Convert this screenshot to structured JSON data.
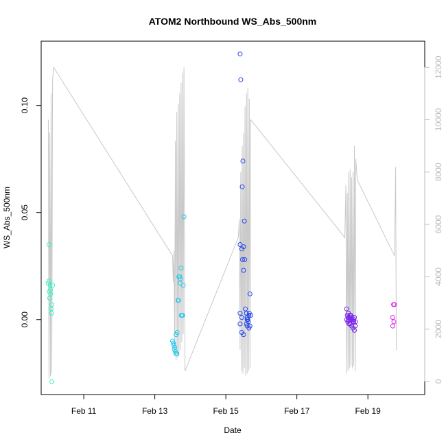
{
  "chart_data": {
    "type": "scatter",
    "title": "ATOM2 Northbound WS_Abs_500nm",
    "xlabel": "Date",
    "ylabel": "WS_Abs_500nm",
    "x_ticks": [
      "Feb 11",
      "Feb 13",
      "Feb 15",
      "Feb 17",
      "Feb 19"
    ],
    "x_tick_days": [
      11,
      13,
      15,
      17,
      19
    ],
    "xlim": [
      9.8,
      20.6
    ],
    "ylim": [
      -0.035,
      0.13
    ],
    "y_ticks": [
      0.0,
      0.05,
      0.1
    ],
    "y_tick_labels": [
      "0.00",
      "0.05",
      "0.10"
    ],
    "y2_lim": [
      -500,
      13000
    ],
    "y2_ticks": [
      0,
      2000,
      4000,
      6000,
      8000,
      10000,
      12000
    ],
    "y2_tick_labels": [
      "0",
      "2000",
      "4000",
      "6000",
      "8000",
      "10000",
      "12000"
    ],
    "grid": false,
    "legend": "none",
    "colors": {
      "line": "#c8c8c8",
      "group1": "#33f2c0",
      "group2": "#22c8ee",
      "group3": "#2244ee",
      "group4": "#7a22ee",
      "group5": "#dd22ee",
      "axis": "#000000",
      "axis_right": "#bbbbbb"
    },
    "point_groups": [
      {
        "color_key": "group1",
        "points": [
          [
            10.02,
            0.035
          ],
          [
            10.0,
            0.017
          ],
          [
            10.02,
            0.018
          ],
          [
            10.05,
            0.016
          ],
          [
            10.06,
            0.014
          ],
          [
            10.03,
            0.013
          ],
          [
            10.07,
            0.012
          ],
          [
            10.04,
            0.01
          ],
          [
            10.1,
            0.007
          ],
          [
            10.08,
            0.005
          ],
          [
            10.09,
            0.003
          ],
          [
            10.12,
            0.016
          ],
          [
            10.1,
            -0.029
          ]
        ]
      },
      {
        "color_key": "group2",
        "points": [
          [
            13.5,
            -0.01
          ],
          [
            13.52,
            -0.011
          ],
          [
            13.54,
            -0.012
          ],
          [
            13.56,
            -0.013
          ],
          [
            13.58,
            -0.015
          ],
          [
            13.6,
            -0.016
          ],
          [
            13.62,
            -0.016
          ],
          [
            13.55,
            -0.014
          ],
          [
            13.6,
            -0.007
          ],
          [
            13.63,
            -0.006
          ],
          [
            13.65,
            0.009
          ],
          [
            13.67,
            0.009
          ],
          [
            13.68,
            0.02
          ],
          [
            13.7,
            0.02
          ],
          [
            13.71,
            0.017
          ],
          [
            13.72,
            0.019
          ],
          [
            13.74,
            0.024
          ],
          [
            13.75,
            0.002
          ],
          [
            13.77,
            0.002
          ],
          [
            13.78,
            0.002
          ],
          [
            13.8,
            0.016
          ],
          [
            13.82,
            0.048
          ]
        ]
      },
      {
        "color_key": "group3",
        "points": [
          [
            15.4,
            0.124
          ],
          [
            15.42,
            0.112
          ],
          [
            15.48,
            0.074
          ],
          [
            15.46,
            0.062
          ],
          [
            15.52,
            0.046
          ],
          [
            15.4,
            0.035
          ],
          [
            15.45,
            0.033
          ],
          [
            15.5,
            0.034
          ],
          [
            15.47,
            0.028
          ],
          [
            15.53,
            0.028
          ],
          [
            15.5,
            0.023
          ],
          [
            15.68,
            0.012
          ],
          [
            15.4,
            0.003
          ],
          [
            15.45,
            0.001
          ],
          [
            15.55,
            0.005
          ],
          [
            15.58,
            0.003
          ],
          [
            15.6,
            0.001
          ],
          [
            15.62,
            0.0
          ],
          [
            15.65,
            0.002
          ],
          [
            15.66,
            0.003
          ],
          [
            15.7,
            0.002
          ],
          [
            15.6,
            0.0
          ],
          [
            15.63,
            -0.001
          ],
          [
            15.58,
            -0.002
          ],
          [
            15.68,
            -0.003
          ],
          [
            15.4,
            -0.002
          ],
          [
            15.45,
            -0.006
          ],
          [
            15.5,
            -0.007
          ],
          [
            15.65,
            -0.004
          ],
          [
            15.6,
            -0.003
          ]
        ]
      },
      {
        "color_key": "group4",
        "points": [
          [
            18.4,
            0.005
          ],
          [
            18.42,
            0.002
          ],
          [
            18.45,
            0.003
          ],
          [
            18.48,
            0.001
          ],
          [
            18.5,
            0.002
          ],
          [
            18.52,
            0.0
          ],
          [
            18.55,
            0.001
          ],
          [
            18.58,
            -0.001
          ],
          [
            18.6,
            0.0
          ],
          [
            18.62,
            0.001
          ],
          [
            18.65,
            -0.001
          ],
          [
            18.4,
            0.0
          ],
          [
            18.43,
            -0.001
          ],
          [
            18.46,
            0.0
          ],
          [
            18.5,
            -0.002
          ],
          [
            18.54,
            -0.003
          ],
          [
            18.58,
            -0.004
          ],
          [
            18.62,
            -0.005
          ],
          [
            18.64,
            -0.003
          ],
          [
            18.47,
            -0.002
          ],
          [
            18.55,
            0.0
          ],
          [
            18.6,
            -0.001
          ],
          [
            18.44,
            0.001
          ],
          [
            18.52,
            0.002
          ]
        ]
      },
      {
        "color_key": "group5",
        "points": [
          [
            19.72,
            0.007
          ],
          [
            19.75,
            0.007
          ],
          [
            19.7,
            0.001
          ],
          [
            19.73,
            -0.001
          ],
          [
            19.7,
            -0.003
          ]
        ]
      }
    ],
    "line_series": {
      "color_key": "line",
      "axis": "right",
      "x": [
        10.0,
        10.02,
        10.04,
        10.06,
        10.08,
        10.1,
        10.12,
        10.15,
        13.5,
        13.52,
        13.54,
        13.56,
        13.58,
        13.6,
        13.62,
        13.64,
        13.66,
        13.68,
        13.7,
        13.72,
        13.74,
        13.76,
        13.78,
        13.8,
        13.82,
        13.85,
        15.35,
        15.38,
        15.4,
        15.42,
        15.44,
        15.46,
        15.48,
        15.5,
        15.52,
        15.54,
        15.56,
        15.58,
        15.6,
        15.62,
        15.64,
        15.66,
        15.68,
        15.7,
        18.35,
        18.38,
        18.4,
        18.42,
        18.44,
        18.46,
        18.48,
        18.5,
        18.52,
        18.54,
        18.56,
        18.58,
        18.6,
        18.62,
        18.64,
        18.66,
        18.7,
        19.75,
        19.78,
        19.8
      ],
      "y": [
        10000,
        100,
        9500,
        200,
        11000,
        300,
        11500,
        12000,
        4800,
        3800,
        5000,
        1100,
        9200,
        800,
        10300,
        900,
        10600,
        1000,
        11000,
        1200,
        11400,
        1500,
        11800,
        1800,
        12000,
        400,
        5500,
        6200,
        1200,
        8000,
        400,
        9000,
        300,
        9500,
        500,
        10500,
        200,
        11000,
        300,
        11200,
        400,
        10800,
        500,
        10000,
        5500,
        7500,
        300,
        7200,
        400,
        8000,
        500,
        8100,
        600,
        7800,
        500,
        8000,
        600,
        9000,
        400,
        8500,
        7700,
        4800,
        8200,
        1200
      ]
    }
  }
}
